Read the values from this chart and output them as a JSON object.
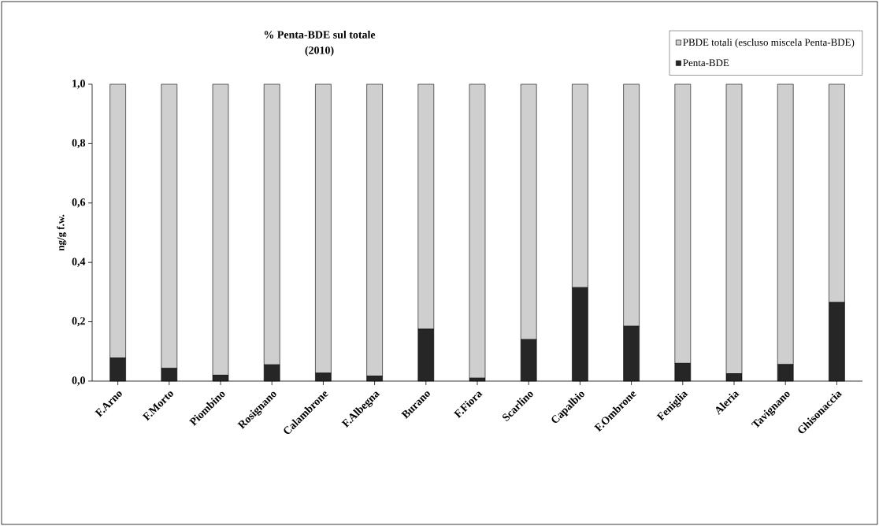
{
  "chart_data": {
    "type": "bar",
    "title": "% Penta-BDE sul totale",
    "subtitle": "(2010)",
    "ylabel": "ng/g f.w.",
    "categories": [
      "F.Arno",
      "F.Morto",
      "Piombino",
      "Rosignano",
      "Calambrone",
      "F.Albegna",
      "Burano",
      "F.Fiora",
      "Scarlino",
      "Capalbio",
      "F.Ombrone",
      "Feniglia",
      "Aleria",
      "Tavignano",
      "Ghisonaccia"
    ],
    "stacked": true,
    "series": [
      {
        "name": "Penta-BDE",
        "color": "#262626",
        "values": [
          0.078,
          0.043,
          0.02,
          0.055,
          0.027,
          0.017,
          0.175,
          0.01,
          0.14,
          0.315,
          0.185,
          0.06,
          0.025,
          0.056,
          0.265
        ]
      },
      {
        "name": "PBDE totali (escluso miscela Penta-BDE)",
        "color": "#cfcfcf",
        "values": [
          0.922,
          0.957,
          0.98,
          0.945,
          0.973,
          0.983,
          0.825,
          0.99,
          0.86,
          0.685,
          0.815,
          0.94,
          0.975,
          0.944,
          0.735
        ]
      }
    ],
    "ylim": [
      0,
      1
    ],
    "yticks": [
      {
        "value": 0,
        "label": "0,0"
      },
      {
        "value": 0.2,
        "label": "0,2"
      },
      {
        "value": 0.4,
        "label": "0,4"
      },
      {
        "value": 0.6,
        "label": "0,6"
      },
      {
        "value": 0.8,
        "label": "0,8"
      },
      {
        "value": 1,
        "label": "1,0"
      }
    ],
    "grid": false,
    "legend": "top right"
  }
}
